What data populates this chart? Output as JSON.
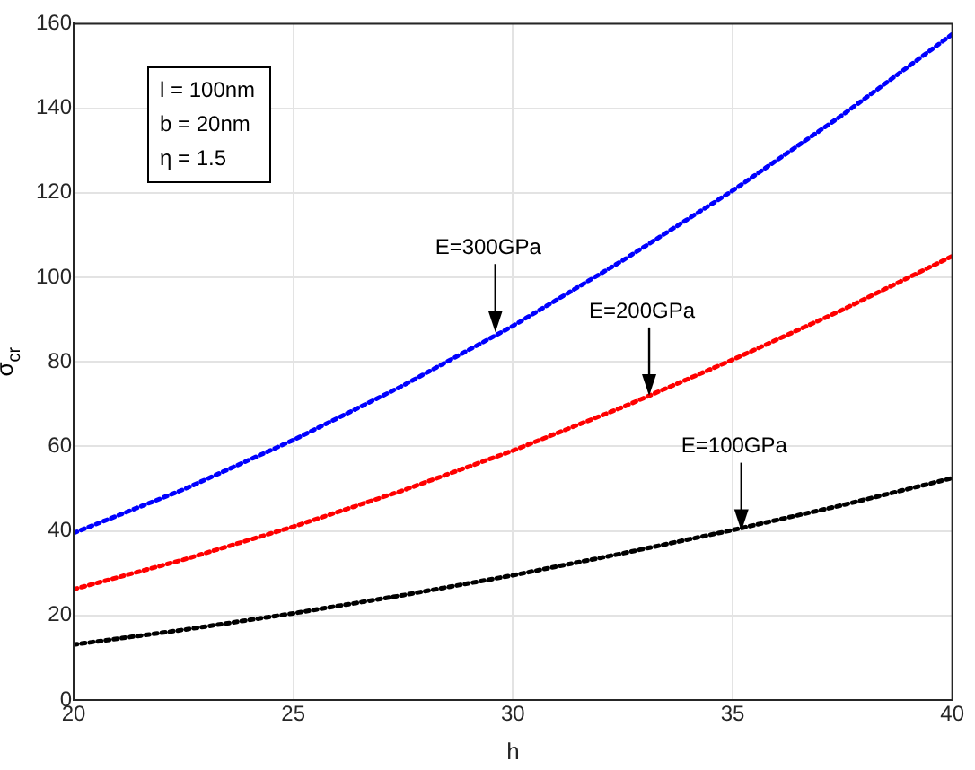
{
  "chart_data": {
    "type": "line",
    "xlabel": "h",
    "ylabel": "σ$_{cr}$",
    "x": [
      20,
      22.5,
      25,
      27.5,
      30,
      32.5,
      35,
      37.5,
      40
    ],
    "series": [
      {
        "color": "#0000ff",
        "values": [
          39.5,
          49.8,
          61.5,
          74.4,
          88.5,
          104,
          120.5,
          138.4,
          157.5
        ]
      },
      {
        "color": "#ff0000",
        "values": [
          26.2,
          33.2,
          41,
          49.6,
          59,
          69.3,
          80.5,
          92.3,
          105
        ]
      },
      {
        "color": "#000000",
        "values": [
          13.1,
          16.6,
          20.5,
          24.8,
          29.5,
          34.7,
          40.2,
          46.1,
          52.5
        ]
      }
    ],
    "xlim": [
      20,
      40
    ],
    "xticks": [
      20,
      25,
      30,
      35,
      40
    ],
    "ylim": [
      0,
      160
    ],
    "yticks": [
      0,
      20,
      40,
      60,
      80,
      100,
      120,
      140,
      160
    ],
    "grid": true,
    "legend": false,
    "marker": "none",
    "line_style": "dotted",
    "annotations": [
      "l = 100nm",
      "b = 20nm",
      "η = 1.5",
      {
        "text": "E=300GPa",
        "x": 29.6,
        "y": 87
      },
      {
        "text": "E=200GPa",
        "x": 33.1,
        "y": 72
      },
      {
        "text": "E=100GPa",
        "x": 35.2,
        "y": 40
      }
    ]
  }
}
